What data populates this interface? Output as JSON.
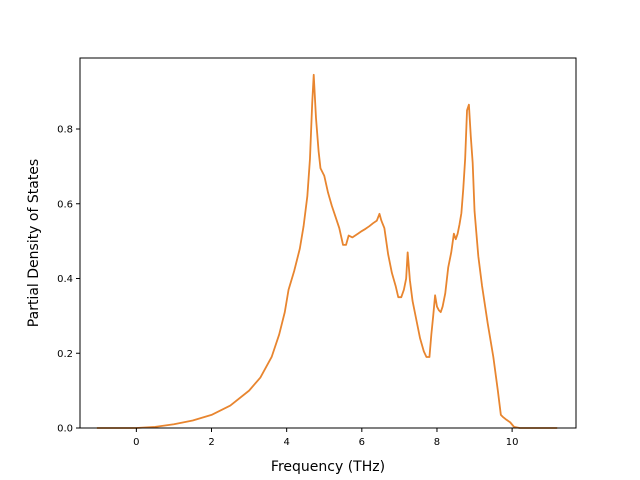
{
  "chart_data": {
    "type": "line",
    "title": "",
    "xlabel": "Frequency (THz)",
    "ylabel": "Partial Density of States",
    "xlim": [
      -1.5,
      11.7
    ],
    "ylim": [
      0.0,
      0.99
    ],
    "x_ticks": [
      0,
      2,
      4,
      6,
      8,
      10
    ],
    "x_tick_labels": [
      "0",
      "2",
      "4",
      "6",
      "8",
      "10"
    ],
    "y_ticks": [
      0.0,
      0.2,
      0.4,
      0.6,
      0.8
    ],
    "y_tick_labels": [
      "0.0",
      "0.2",
      "0.4",
      "0.6",
      "0.8"
    ],
    "grid": false,
    "legend": false,
    "series_color": "#e8852f",
    "series": [
      {
        "x": [
          -1.05,
          0.0,
          0.5,
          1.0,
          1.5,
          2.0,
          2.5,
          3.0,
          3.3,
          3.6,
          3.8,
          3.95,
          4.05,
          4.2,
          4.35,
          4.45,
          4.55,
          4.62,
          4.68,
          4.72,
          4.78,
          4.85,
          4.9,
          5.0,
          5.1,
          5.2,
          5.3,
          5.4,
          5.5,
          5.58,
          5.65,
          5.75,
          5.9,
          6.0,
          6.1,
          6.2,
          6.3,
          6.4,
          6.47,
          6.52,
          6.6,
          6.7,
          6.8,
          6.9,
          6.97,
          7.05,
          7.12,
          7.18,
          7.22,
          7.28,
          7.35,
          7.45,
          7.55,
          7.65,
          7.72,
          7.8,
          7.85,
          7.9,
          7.95,
          8.0,
          8.05,
          8.1,
          8.15,
          8.22,
          8.3,
          8.38,
          8.45,
          8.5,
          8.55,
          8.6,
          8.65,
          8.7,
          8.75,
          8.8,
          8.85,
          8.9,
          8.95,
          9.0,
          9.1,
          9.2,
          9.35,
          9.5,
          9.62,
          9.7,
          9.75,
          9.85,
          9.95,
          10.05,
          10.2,
          10.5,
          11.2
        ],
        "y": [
          0.0,
          0.0,
          0.003,
          0.01,
          0.02,
          0.035,
          0.06,
          0.1,
          0.135,
          0.19,
          0.25,
          0.31,
          0.37,
          0.42,
          0.48,
          0.54,
          0.62,
          0.72,
          0.87,
          0.945,
          0.83,
          0.74,
          0.695,
          0.675,
          0.63,
          0.595,
          0.565,
          0.535,
          0.49,
          0.49,
          0.515,
          0.51,
          0.52,
          0.527,
          0.533,
          0.54,
          0.548,
          0.555,
          0.573,
          0.555,
          0.535,
          0.465,
          0.415,
          0.38,
          0.35,
          0.35,
          0.37,
          0.4,
          0.47,
          0.395,
          0.34,
          0.29,
          0.24,
          0.205,
          0.19,
          0.19,
          0.25,
          0.3,
          0.355,
          0.325,
          0.315,
          0.31,
          0.325,
          0.36,
          0.43,
          0.47,
          0.52,
          0.505,
          0.52,
          0.545,
          0.575,
          0.64,
          0.72,
          0.85,
          0.865,
          0.78,
          0.71,
          0.58,
          0.46,
          0.38,
          0.28,
          0.19,
          0.1,
          0.035,
          0.03,
          0.022,
          0.015,
          0.003,
          0.0,
          0.0,
          0.0
        ]
      }
    ]
  }
}
